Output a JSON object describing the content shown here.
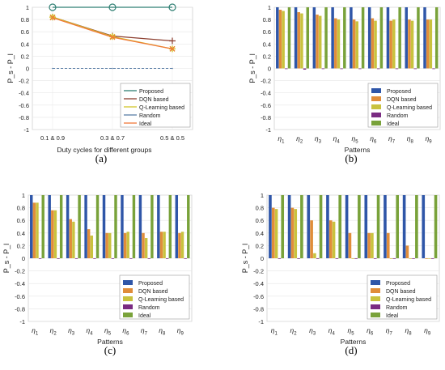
{
  "colors": {
    "proposed": "#2f56a8",
    "dqn": "#e08d3a",
    "qlearning": "#c9c23e",
    "random": "#7a2b82",
    "ideal": "#79a23a",
    "line_proposed": "#2f7f73",
    "line_dqn": "#8b3e2f",
    "line_ql": "#d3c52b",
    "line_random": "#5b7fa8",
    "line_ideal": "#f07a3a"
  },
  "chart_data": [
    {
      "panel": "a",
      "type": "line",
      "caption": "(a)",
      "xlabel": "Duty cycles for different groups",
      "ylabel": "P_s - P_l",
      "categories": [
        "0.1 & 0.9",
        "0.3 & 0.7",
        "0.5 & 0.5"
      ],
      "ylim": [
        -1,
        1
      ],
      "yticks": [
        "1",
        "0.8",
        "0.6",
        "0.4",
        "0.2",
        "0",
        "-0.2",
        "-0.4",
        "-0.6",
        "-0.8",
        "-1"
      ],
      "legend": [
        "Proposed",
        "DQN based",
        "Q-Learning based",
        "Random",
        "Ideal"
      ],
      "legend_position": "bottom-right",
      "grid": true,
      "series": [
        {
          "name": "Proposed",
          "values": [
            1.0,
            1.0,
            1.0
          ]
        },
        {
          "name": "DQN based",
          "values": [
            0.84,
            0.53,
            0.45
          ]
        },
        {
          "name": "Q-Learning based",
          "values": [
            0.84,
            0.52,
            0.32
          ]
        },
        {
          "name": "Random",
          "values": [
            0.0,
            0.0,
            0.0
          ]
        },
        {
          "name": "Ideal",
          "values": [
            0.83,
            0.51,
            0.32
          ]
        }
      ]
    },
    {
      "panel": "b",
      "type": "bar",
      "caption": "(b)",
      "xlabel": "Patterns",
      "ylabel": "P_s - P_l",
      "categories": [
        "1",
        "2",
        "3",
        "4",
        "5",
        "6",
        "7",
        "8",
        "9"
      ],
      "ylim": [
        -1,
        1
      ],
      "yticks": [
        "1",
        "0.8",
        "0.6",
        "0.4",
        "0.2",
        "0",
        "-0.2",
        "-0.4",
        "-0.6",
        "-0.8",
        "-1"
      ],
      "legend": [
        "Proposed",
        "DQN based",
        "Q-Learning based",
        "Random",
        "Ideal"
      ],
      "legend_position": "bottom-right",
      "grid": true,
      "series": [
        {
          "name": "Proposed",
          "values": [
            1,
            1,
            1,
            1,
            1,
            1,
            1,
            1,
            1
          ]
        },
        {
          "name": "DQN based",
          "values": [
            0.96,
            0.92,
            0.88,
            0.82,
            0.8,
            0.82,
            0.78,
            0.8,
            0.8
          ]
        },
        {
          "name": "Q-Learning based",
          "values": [
            0.94,
            0.9,
            0.86,
            0.8,
            0.77,
            0.78,
            0.8,
            0.78,
            0.8
          ]
        },
        {
          "name": "Random",
          "values": [
            0,
            -0.02,
            -0.01,
            0,
            -0.01,
            0,
            -0.01,
            0,
            -0.01
          ]
        },
        {
          "name": "Ideal",
          "values": [
            1,
            1,
            1,
            1,
            1,
            1,
            1,
            1,
            1
          ]
        }
      ]
    },
    {
      "panel": "c",
      "type": "bar",
      "caption": "(c)",
      "xlabel": "Patterns",
      "ylabel": "P_s - P_l",
      "categories": [
        "1",
        "2",
        "3",
        "4",
        "5",
        "6",
        "7",
        "8",
        "9"
      ],
      "ylim": [
        -1,
        1
      ],
      "yticks": [
        "1",
        "0.8",
        "0.6",
        "0.4",
        "0.2",
        "0",
        "-0.2",
        "-0.4",
        "-0.6",
        "-0.8",
        "-1"
      ],
      "legend": [
        "Proposed",
        "DQN based",
        "Q-Learning based",
        "Random",
        "Ideal"
      ],
      "legend_position": "bottom-right",
      "grid": true,
      "series": [
        {
          "name": "Proposed",
          "values": [
            1,
            1,
            1,
            1,
            1,
            1,
            1,
            1,
            1
          ]
        },
        {
          "name": "DQN based",
          "values": [
            0.88,
            0.76,
            0.62,
            0.46,
            0.4,
            0.4,
            0.4,
            0.42,
            0.4
          ]
        },
        {
          "name": "Q-Learning based",
          "values": [
            0.88,
            0.76,
            0.58,
            0.36,
            0.4,
            0.42,
            0.32,
            0.42,
            0.42
          ]
        },
        {
          "name": "Random",
          "values": [
            0,
            -0.01,
            0,
            0,
            -0.01,
            0,
            0,
            0,
            -0.01
          ]
        },
        {
          "name": "Ideal",
          "values": [
            1,
            1,
            1,
            1,
            1,
            1,
            1,
            1,
            1
          ]
        }
      ]
    },
    {
      "panel": "d",
      "type": "bar",
      "caption": "(d)",
      "xlabel": "Patterns",
      "ylabel": "P_s - P_l",
      "categories": [
        "1",
        "2",
        "3",
        "4",
        "5",
        "6",
        "7",
        "8",
        "9"
      ],
      "ylim": [
        -1,
        1
      ],
      "yticks": [
        "1",
        "0.8",
        "0.6",
        "0.4",
        "0.2",
        "0",
        "-0.2",
        "-0.4",
        "-0.6",
        "-0.8",
        "-1"
      ],
      "legend": [
        "Proposed",
        "DQN based",
        "Q-Learning based",
        "Random",
        "Ideal"
      ],
      "legend_position": "bottom-right",
      "grid": true,
      "series": [
        {
          "name": "Proposed",
          "values": [
            1,
            1,
            1,
            1,
            1,
            1,
            1,
            1,
            1
          ]
        },
        {
          "name": "DQN based",
          "values": [
            0.8,
            0.8,
            0.6,
            0.6,
            0.4,
            0.4,
            0.4,
            0.2,
            0
          ]
        },
        {
          "name": "Q-Learning based",
          "values": [
            0.78,
            0.78,
            0.08,
            0.58,
            0,
            0.4,
            0,
            0,
            0
          ]
        },
        {
          "name": "Random",
          "values": [
            0,
            0,
            0,
            0,
            -0.01,
            0,
            -0.01,
            -0.01,
            -0.01
          ]
        },
        {
          "name": "Ideal",
          "values": [
            1,
            1,
            1,
            1,
            1,
            1,
            1,
            1,
            1
          ]
        }
      ]
    }
  ]
}
